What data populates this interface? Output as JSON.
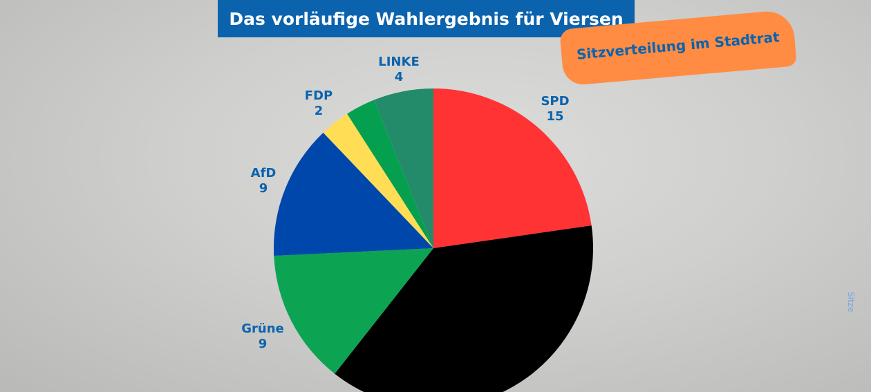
{
  "title": "Das vorläufige Wahlergebnis für Viersen",
  "banner": "Sitzverteilung im Stadtrat",
  "chart_data": {
    "type": "pie",
    "title": "Das vorläufige Wahlergebnis für Viersen",
    "subtitle": "Sitzverteilung im Stadtrat",
    "unit_label": "Sitze",
    "slices": [
      {
        "label": "SPD",
        "value": 15,
        "color": "#ff3333"
      },
      {
        "label": "",
        "value": 25,
        "color": "#000000"
      },
      {
        "label": "Grüne",
        "value": 9,
        "color": "#0ca453"
      },
      {
        "label": "AfD",
        "value": 9,
        "color": "#0047ab"
      },
      {
        "label": "FDP",
        "value": 2,
        "color": "#ffdd55"
      },
      {
        "label": "",
        "value": 2,
        "color": "#04a050"
      },
      {
        "label": "LINKE",
        "value": 4,
        "color": "#238b6a"
      }
    ]
  }
}
